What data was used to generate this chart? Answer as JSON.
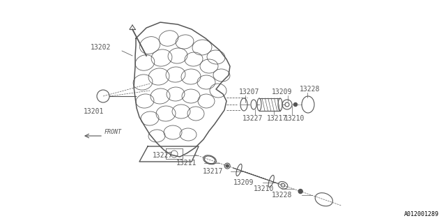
{
  "background_color": "#ffffff",
  "line_color": "#555555",
  "figure_id": "A012001289",
  "font_size": 7,
  "fig_width": 6.4,
  "fig_height": 3.2
}
